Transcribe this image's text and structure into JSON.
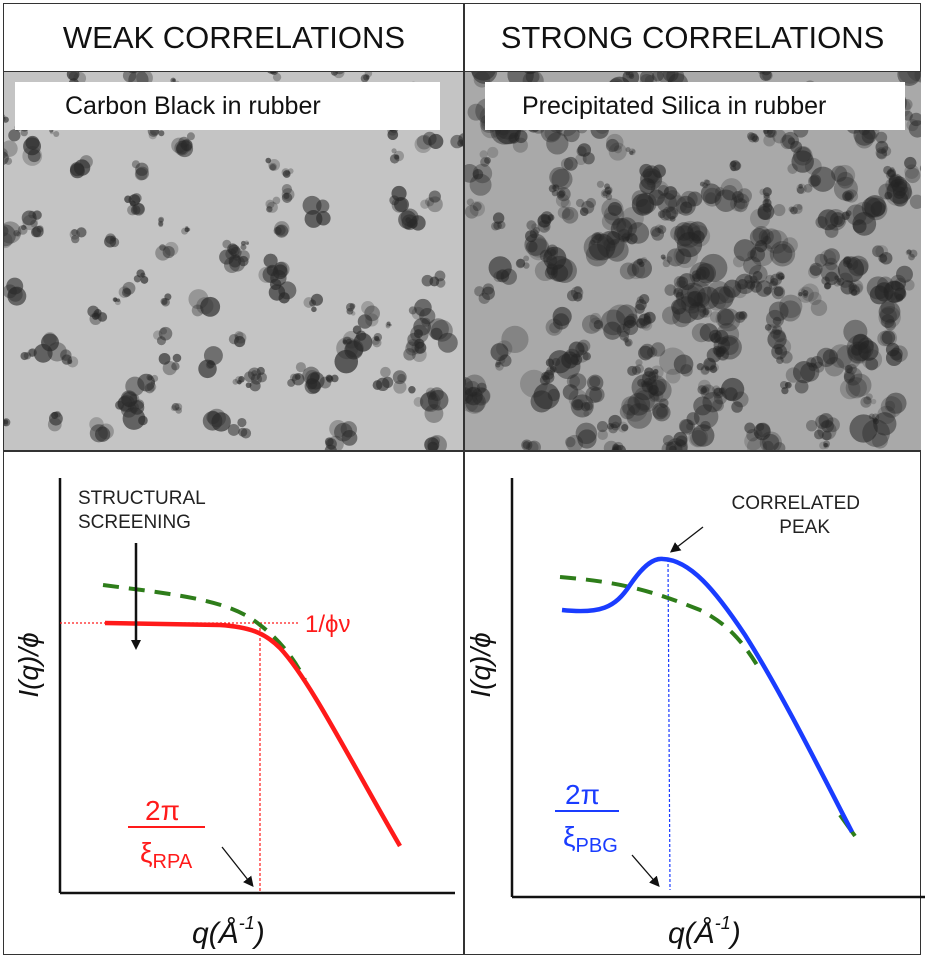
{
  "headers": {
    "left": "WEAK CORRELATIONS",
    "right": "STRONG CORRELATIONS"
  },
  "micrographs": {
    "left_label": "Carbon Black in rubber",
    "right_label": "Precipitated Silica in rubber"
  },
  "left_plot": {
    "ylabel": "I(q)/ϕ",
    "xlabel_base": "q(",
    "xlabel_unit": "Å",
    "xlabel_exp": "-1",
    "xlabel_close": ")",
    "annotation": [
      "STRUCTURAL",
      "SCREENING"
    ],
    "plateau_label": "1/ϕν",
    "marker_num": "2π",
    "marker_den": "ξ",
    "marker_sub": "RPA"
  },
  "right_plot": {
    "ylabel": "I(q)/ϕ",
    "xlabel_base": "q(",
    "xlabel_unit": "Å",
    "xlabel_exp": "-1",
    "xlabel_close": ")",
    "annotation": [
      "CORRELATED",
      "PEAK"
    ],
    "marker_num": "2π",
    "marker_den": "ξ",
    "marker_sub": "PBG"
  },
  "colors": {
    "red": "#ff1a1a",
    "blue": "#1a3cff",
    "green": "#2e7d1a"
  }
}
